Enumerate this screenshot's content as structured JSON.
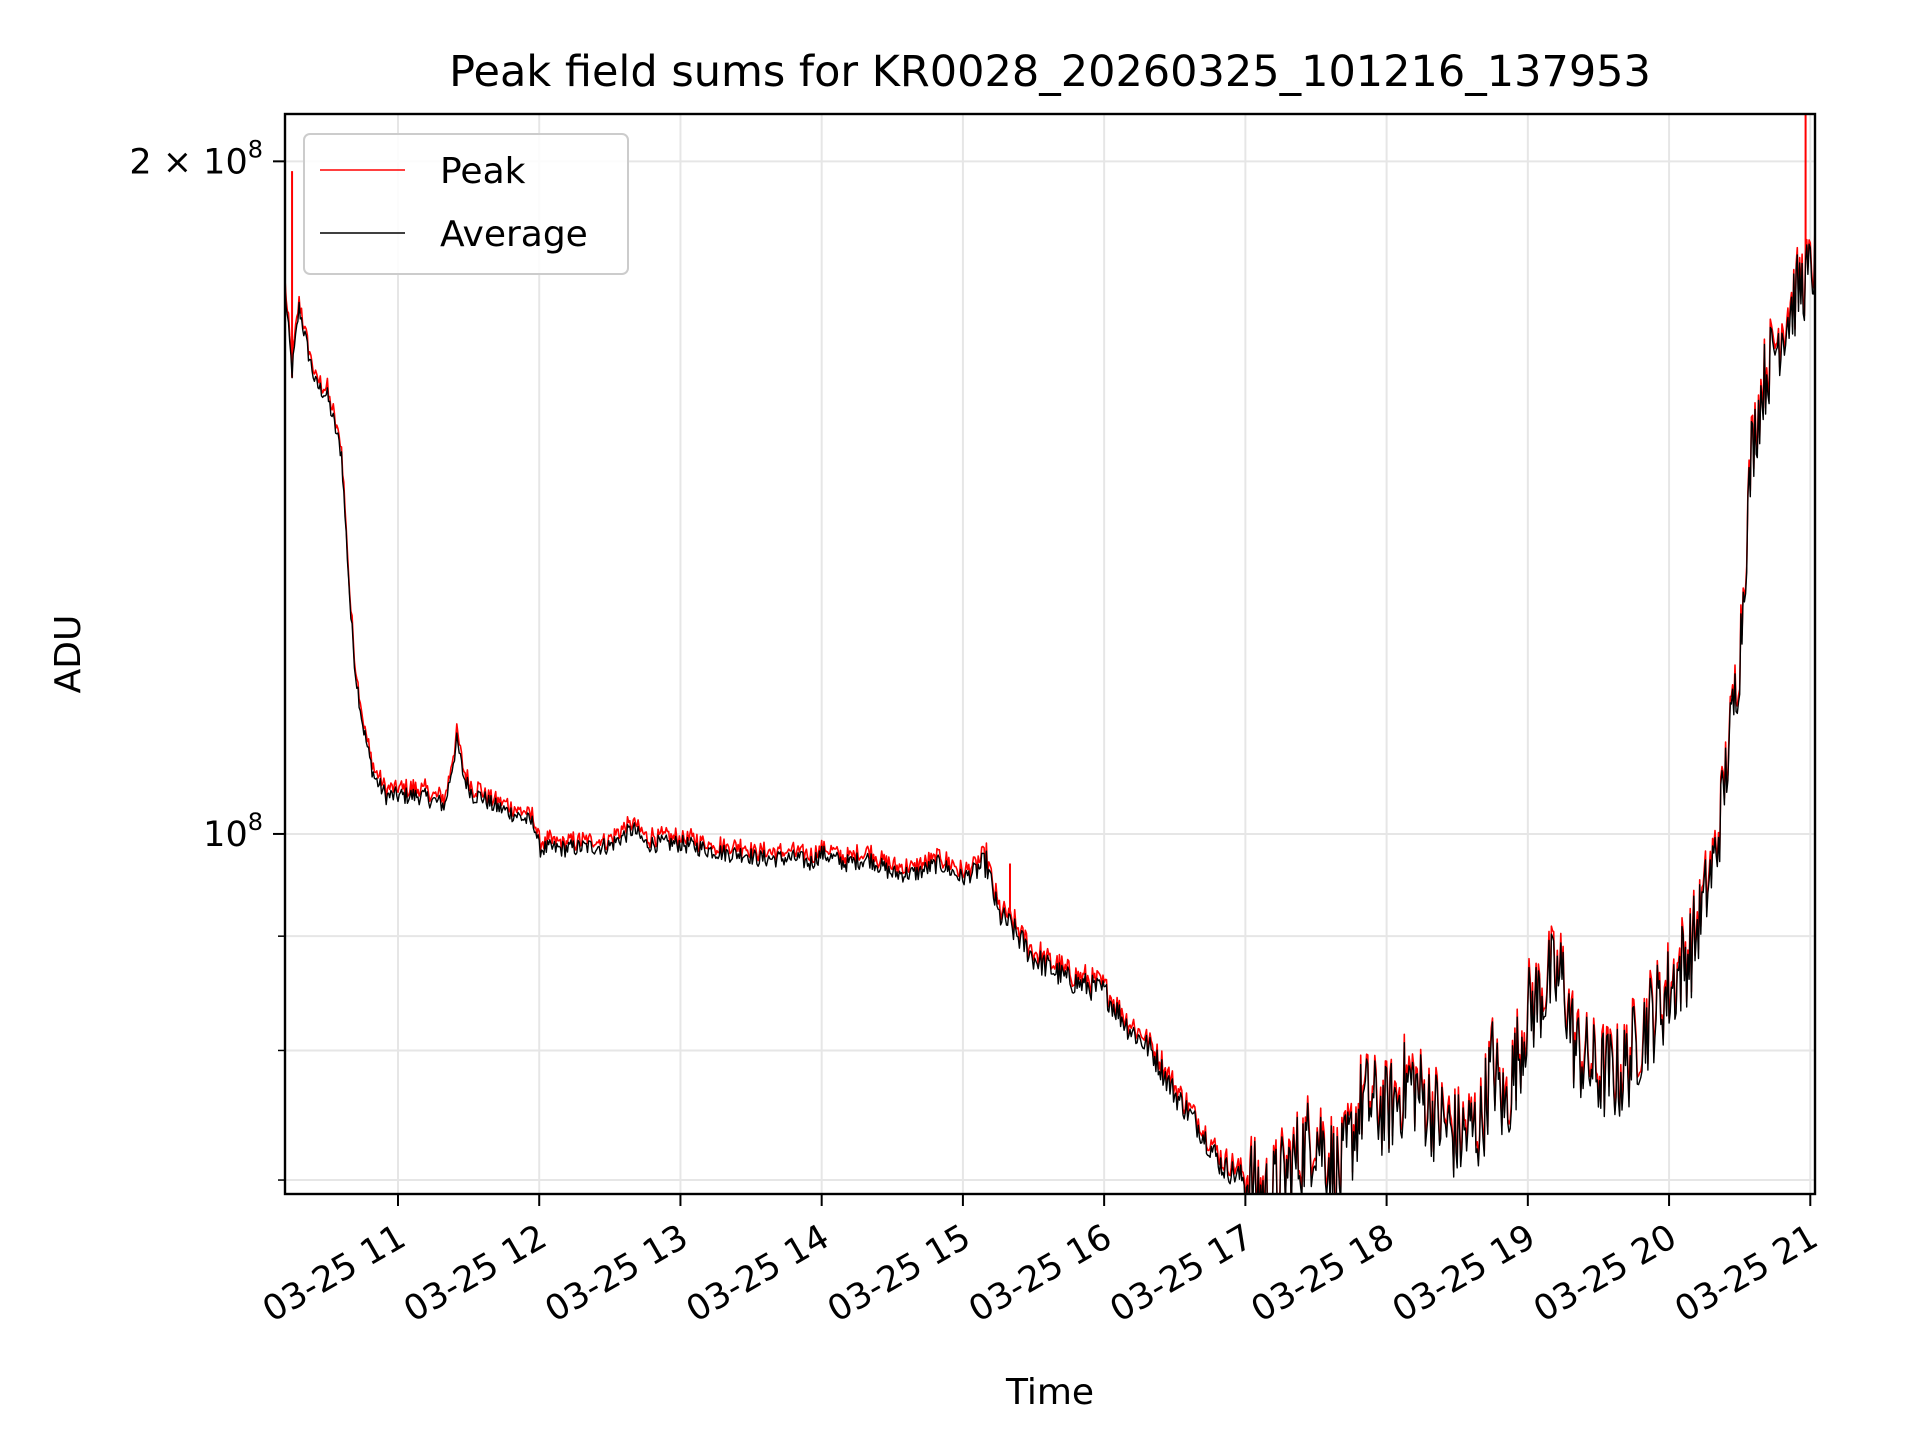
{
  "chart_data": {
    "type": "line",
    "title": "Peak field sums for KR0028_20260325_101216_137953",
    "xlabel": "Time",
    "ylabel": "ADU",
    "x_ticks": [
      "03-25 11",
      "03-25 12",
      "03-25 13",
      "03-25 14",
      "03-25 15",
      "03-25 16",
      "03-25 17",
      "03-25 18",
      "03-25 19",
      "03-25 20",
      "03-25 21"
    ],
    "xlim": [
      "2026-03-25 10:12",
      "2026-03-25 21:02"
    ],
    "y_scale": "log",
    "ylim": [
      69000000,
      210000000
    ],
    "y_ticks": [
      {
        "value": 100000000,
        "base": "10",
        "exp": "8"
      },
      {
        "value": 200000000,
        "base": "2 × 10",
        "exp": "8"
      }
    ],
    "y_minor_ticks": [
      70000000,
      80000000,
      90000000
    ],
    "grid": true,
    "legend_position": "upper-left",
    "series": [
      {
        "name": "Peak",
        "color": "#ff0000"
      },
      {
        "name": "Average",
        "color": "#000000"
      }
    ],
    "x": [
      "10:12",
      "10:15",
      "10:18",
      "10:20",
      "10:22",
      "10:25",
      "10:30",
      "10:36",
      "10:40",
      "10:42",
      "10:45",
      "10:48",
      "10:50",
      "10:55",
      "11:00",
      "11:10",
      "11:20",
      "11:25",
      "11:28",
      "11:30",
      "11:32",
      "11:35",
      "11:40",
      "11:50",
      "11:58",
      "12:00",
      "12:10",
      "12:30",
      "12:40",
      "12:45",
      "12:50",
      "13:00",
      "13:10",
      "13:20",
      "13:28",
      "13:32",
      "13:40",
      "13:50",
      "13:55",
      "14:00",
      "14:10",
      "14:20",
      "14:30",
      "14:40",
      "14:50",
      "15:00",
      "15:10",
      "15:15",
      "15:20",
      "15:30",
      "15:45",
      "16:00",
      "16:10",
      "16:20",
      "16:30",
      "16:40",
      "16:50",
      "17:00",
      "17:10",
      "17:20",
      "17:30",
      "17:40",
      "17:50",
      "18:00",
      "18:10",
      "18:20",
      "18:30",
      "18:40",
      "18:45",
      "18:50",
      "19:00",
      "19:10",
      "19:15",
      "19:20",
      "19:30",
      "19:40",
      "19:50",
      "20:00",
      "20:10",
      "20:20",
      "20:30",
      "20:35",
      "20:40",
      "20:45",
      "20:50",
      "20:55",
      "21:00",
      "21:02"
    ],
    "values_average": [
      175000000,
      161000000,
      172000000,
      168000000,
      164000000,
      159000000,
      157000000,
      148000000,
      125000000,
      118000000,
      112000000,
      108000000,
      106000000,
      104000000,
      104000000,
      104000000,
      103000000,
      110000000,
      106000000,
      105000000,
      104000000,
      104000000,
      103000000,
      102000000,
      101000000,
      98500000,
      98500000,
      98800000,
      100500000,
      99000000,
      99000000,
      99000000,
      98500000,
      98000000,
      98000000,
      97500000,
      97500000,
      97500000,
      97000000,
      98000000,
      97000000,
      97500000,
      96000000,
      96000000,
      97000000,
      95500000,
      97000000,
      92000000,
      91000000,
      88000000,
      86000000,
      85000000,
      82000000,
      80000000,
      76500000,
      74000000,
      71000000,
      70000000,
      68500000,
      71000000,
      73500000,
      70000000,
      76000000,
      75000000,
      77500000,
      75000000,
      73000000,
      74000000,
      79000000,
      75000000,
      83000000,
      86000000,
      86000000,
      80000000,
      78000000,
      78000000,
      82000000,
      85000000,
      89000000,
      98000000,
      120000000,
      148000000,
      159000000,
      165000000,
      170000000,
      175000000,
      178000000,
      180000000
    ],
    "peak_spikes": [
      {
        "x": "10:15",
        "y": 198000000
      },
      {
        "x": "15:20",
        "y": 97000000
      },
      {
        "x": "20:58",
        "y": 210000000
      }
    ]
  }
}
